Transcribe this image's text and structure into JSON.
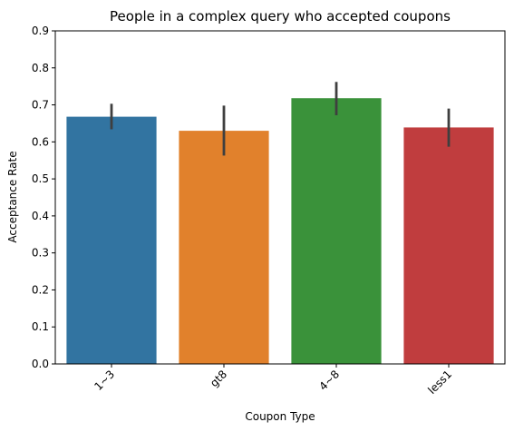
{
  "chart_data": {
    "type": "bar",
    "title": "People in a complex query who accepted coupons",
    "xlabel": "Coupon Type",
    "ylabel": "Acceptance Rate",
    "categories": [
      "1~3",
      "gt8",
      "4~8",
      "less1"
    ],
    "values": [
      0.668,
      0.63,
      0.718,
      0.639
    ],
    "error_low": [
      0.634,
      0.563,
      0.672,
      0.587
    ],
    "error_high": [
      0.703,
      0.698,
      0.762,
      0.69
    ],
    "colors": [
      "#3274a1",
      "#e1812c",
      "#3a923a",
      "#c03d3e"
    ],
    "error_color": "#3f3f3f",
    "ylim": [
      0,
      0.9
    ],
    "yticks": [
      "0.0",
      "0.1",
      "0.2",
      "0.3",
      "0.4",
      "0.5",
      "0.6",
      "0.7",
      "0.8",
      "0.9"
    ],
    "xtick_rotation": 45,
    "grid": false,
    "legend": "none"
  }
}
